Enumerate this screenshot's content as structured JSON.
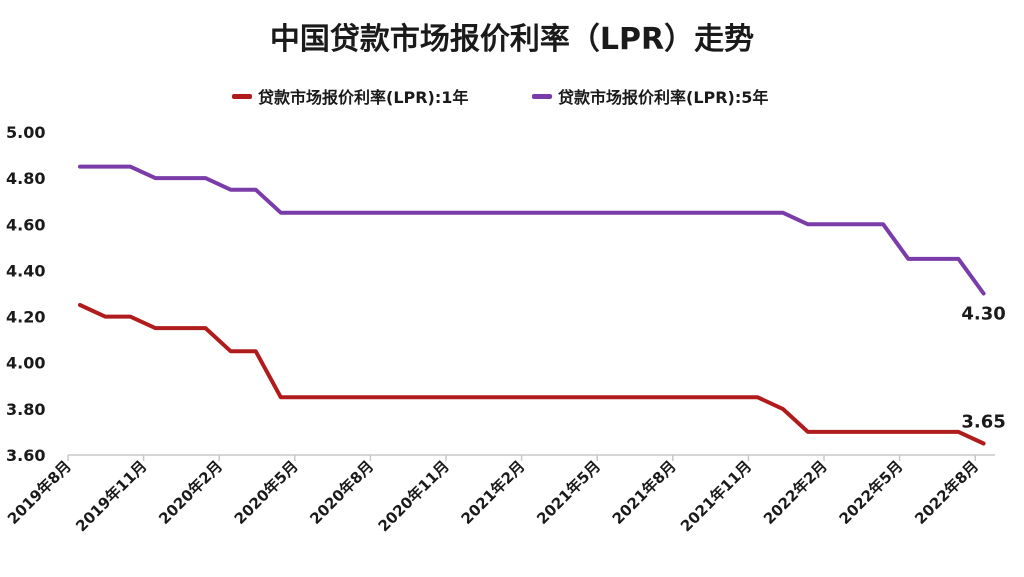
{
  "chart_data": {
    "type": "line",
    "title": "中国贷款市场报价利率（LPR）走势",
    "xlabel": "",
    "ylabel": "",
    "ylim": [
      3.6,
      5.0
    ],
    "yticks": [
      "5.00",
      "4.80",
      "4.60",
      "4.40",
      "4.20",
      "4.00",
      "3.80",
      "3.60"
    ],
    "xticks": [
      "2019年8月",
      "2019年11月",
      "2020年2月",
      "2020年5月",
      "2020年8月",
      "2020年11月",
      "2021年2月",
      "2021年5月",
      "2021年8月",
      "2021年11月",
      "2022年2月",
      "2022年5月",
      "2022年8月"
    ],
    "legend_position": "top",
    "grid": false,
    "series": [
      {
        "name": "贷款市场报价利率(LPR):1年",
        "color": "#b01c1c",
        "points": [
          [
            0,
            4.25
          ],
          [
            1,
            4.2
          ],
          [
            2,
            4.2
          ],
          [
            3,
            4.15
          ],
          [
            4,
            4.15
          ],
          [
            5,
            4.15
          ],
          [
            6,
            4.05
          ],
          [
            7,
            4.05
          ],
          [
            8,
            3.85
          ],
          [
            9,
            3.85
          ],
          [
            10,
            3.85
          ],
          [
            11,
            3.85
          ],
          [
            12,
            3.85
          ],
          [
            13,
            3.85
          ],
          [
            14,
            3.85
          ],
          [
            15,
            3.85
          ],
          [
            16,
            3.85
          ],
          [
            17,
            3.85
          ],
          [
            18,
            3.85
          ],
          [
            19,
            3.85
          ],
          [
            20,
            3.85
          ],
          [
            21,
            3.85
          ],
          [
            22,
            3.85
          ],
          [
            23,
            3.85
          ],
          [
            24,
            3.85
          ],
          [
            25,
            3.85
          ],
          [
            26,
            3.85
          ],
          [
            27,
            3.85
          ],
          [
            28,
            3.8
          ],
          [
            29,
            3.7
          ],
          [
            30,
            3.7
          ],
          [
            31,
            3.7
          ],
          [
            32,
            3.7
          ],
          [
            33,
            3.7
          ],
          [
            34,
            3.7
          ],
          [
            35,
            3.7
          ],
          [
            36,
            3.65
          ]
        ],
        "end_label": "3.65"
      },
      {
        "name": "贷款市场报价利率(LPR):5年",
        "color": "#7a3ca8",
        "points": [
          [
            0,
            4.85
          ],
          [
            1,
            4.85
          ],
          [
            2,
            4.85
          ],
          [
            3,
            4.8
          ],
          [
            4,
            4.8
          ],
          [
            5,
            4.8
          ],
          [
            6,
            4.75
          ],
          [
            7,
            4.75
          ],
          [
            8,
            4.65
          ],
          [
            9,
            4.65
          ],
          [
            10,
            4.65
          ],
          [
            11,
            4.65
          ],
          [
            12,
            4.65
          ],
          [
            13,
            4.65
          ],
          [
            14,
            4.65
          ],
          [
            15,
            4.65
          ],
          [
            16,
            4.65
          ],
          [
            17,
            4.65
          ],
          [
            18,
            4.65
          ],
          [
            19,
            4.65
          ],
          [
            20,
            4.65
          ],
          [
            21,
            4.65
          ],
          [
            22,
            4.65
          ],
          [
            23,
            4.65
          ],
          [
            24,
            4.65
          ],
          [
            25,
            4.65
          ],
          [
            26,
            4.65
          ],
          [
            27,
            4.65
          ],
          [
            28,
            4.65
          ],
          [
            29,
            4.6
          ],
          [
            30,
            4.6
          ],
          [
            31,
            4.6
          ],
          [
            32,
            4.6
          ],
          [
            33,
            4.45
          ],
          [
            34,
            4.45
          ],
          [
            35,
            4.45
          ],
          [
            36,
            4.3
          ]
        ],
        "end_label": "4.30"
      }
    ]
  }
}
